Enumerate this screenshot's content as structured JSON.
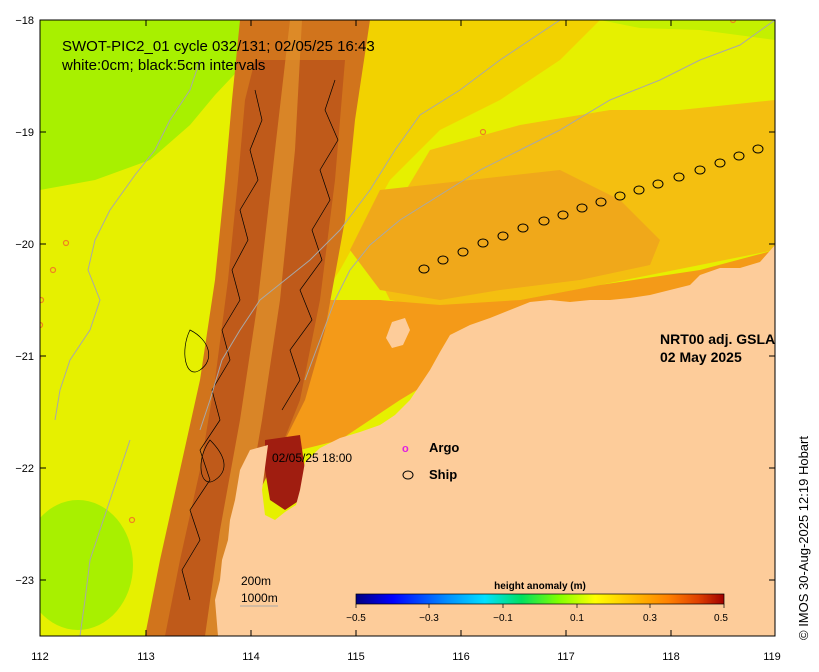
{
  "title": {
    "line1": "SWOT-PIC2_01 cycle 032/131; 02/05/25 16:43",
    "line2": "white:0cm; black:5cm intervals"
  },
  "product": {
    "line1": "NRT00 adj. GSLA",
    "line2": "02 May 2025"
  },
  "legend": {
    "argo_label": "Argo",
    "argo_symbol": "o",
    "ship_label": "Ship"
  },
  "track_annotation": "02/05/25 18:00",
  "depth_labels": {
    "shallow": "200m",
    "deep": "1000m"
  },
  "credit": "© IMOS 30-Aug-2025 12:19 Hobart",
  "axes": {
    "x_ticks": [
      "112",
      "113",
      "114",
      "115",
      "116",
      "117",
      "118",
      "119"
    ],
    "y_ticks": [
      "−18",
      "−19",
      "−20",
      "−21",
      "−22",
      "−23"
    ]
  },
  "colorbar": {
    "title": "height anomaly (m)",
    "ticks": [
      "−0.5",
      "−0.3",
      "−0.1",
      "0.1",
      "0.3",
      "0.5"
    ],
    "colors": [
      "#000080",
      "#0000e0",
      "#0060ff",
      "#00b0ff",
      "#00e0ff",
      "#00ff80",
      "#40e000",
      "#a0ff00",
      "#e0ff00",
      "#ffe000",
      "#ffb000",
      "#ff8000",
      "#e05000",
      "#c02000",
      "#a00000"
    ]
  },
  "colors": {
    "land": "#fdcc9a",
    "ocean_yellow": "#e6f000",
    "ocean_green": "#a8f000",
    "anomaly_orange": "#f6a61a",
    "swath_dark": "#bf5a1a",
    "ship_track": "#000000"
  }
}
